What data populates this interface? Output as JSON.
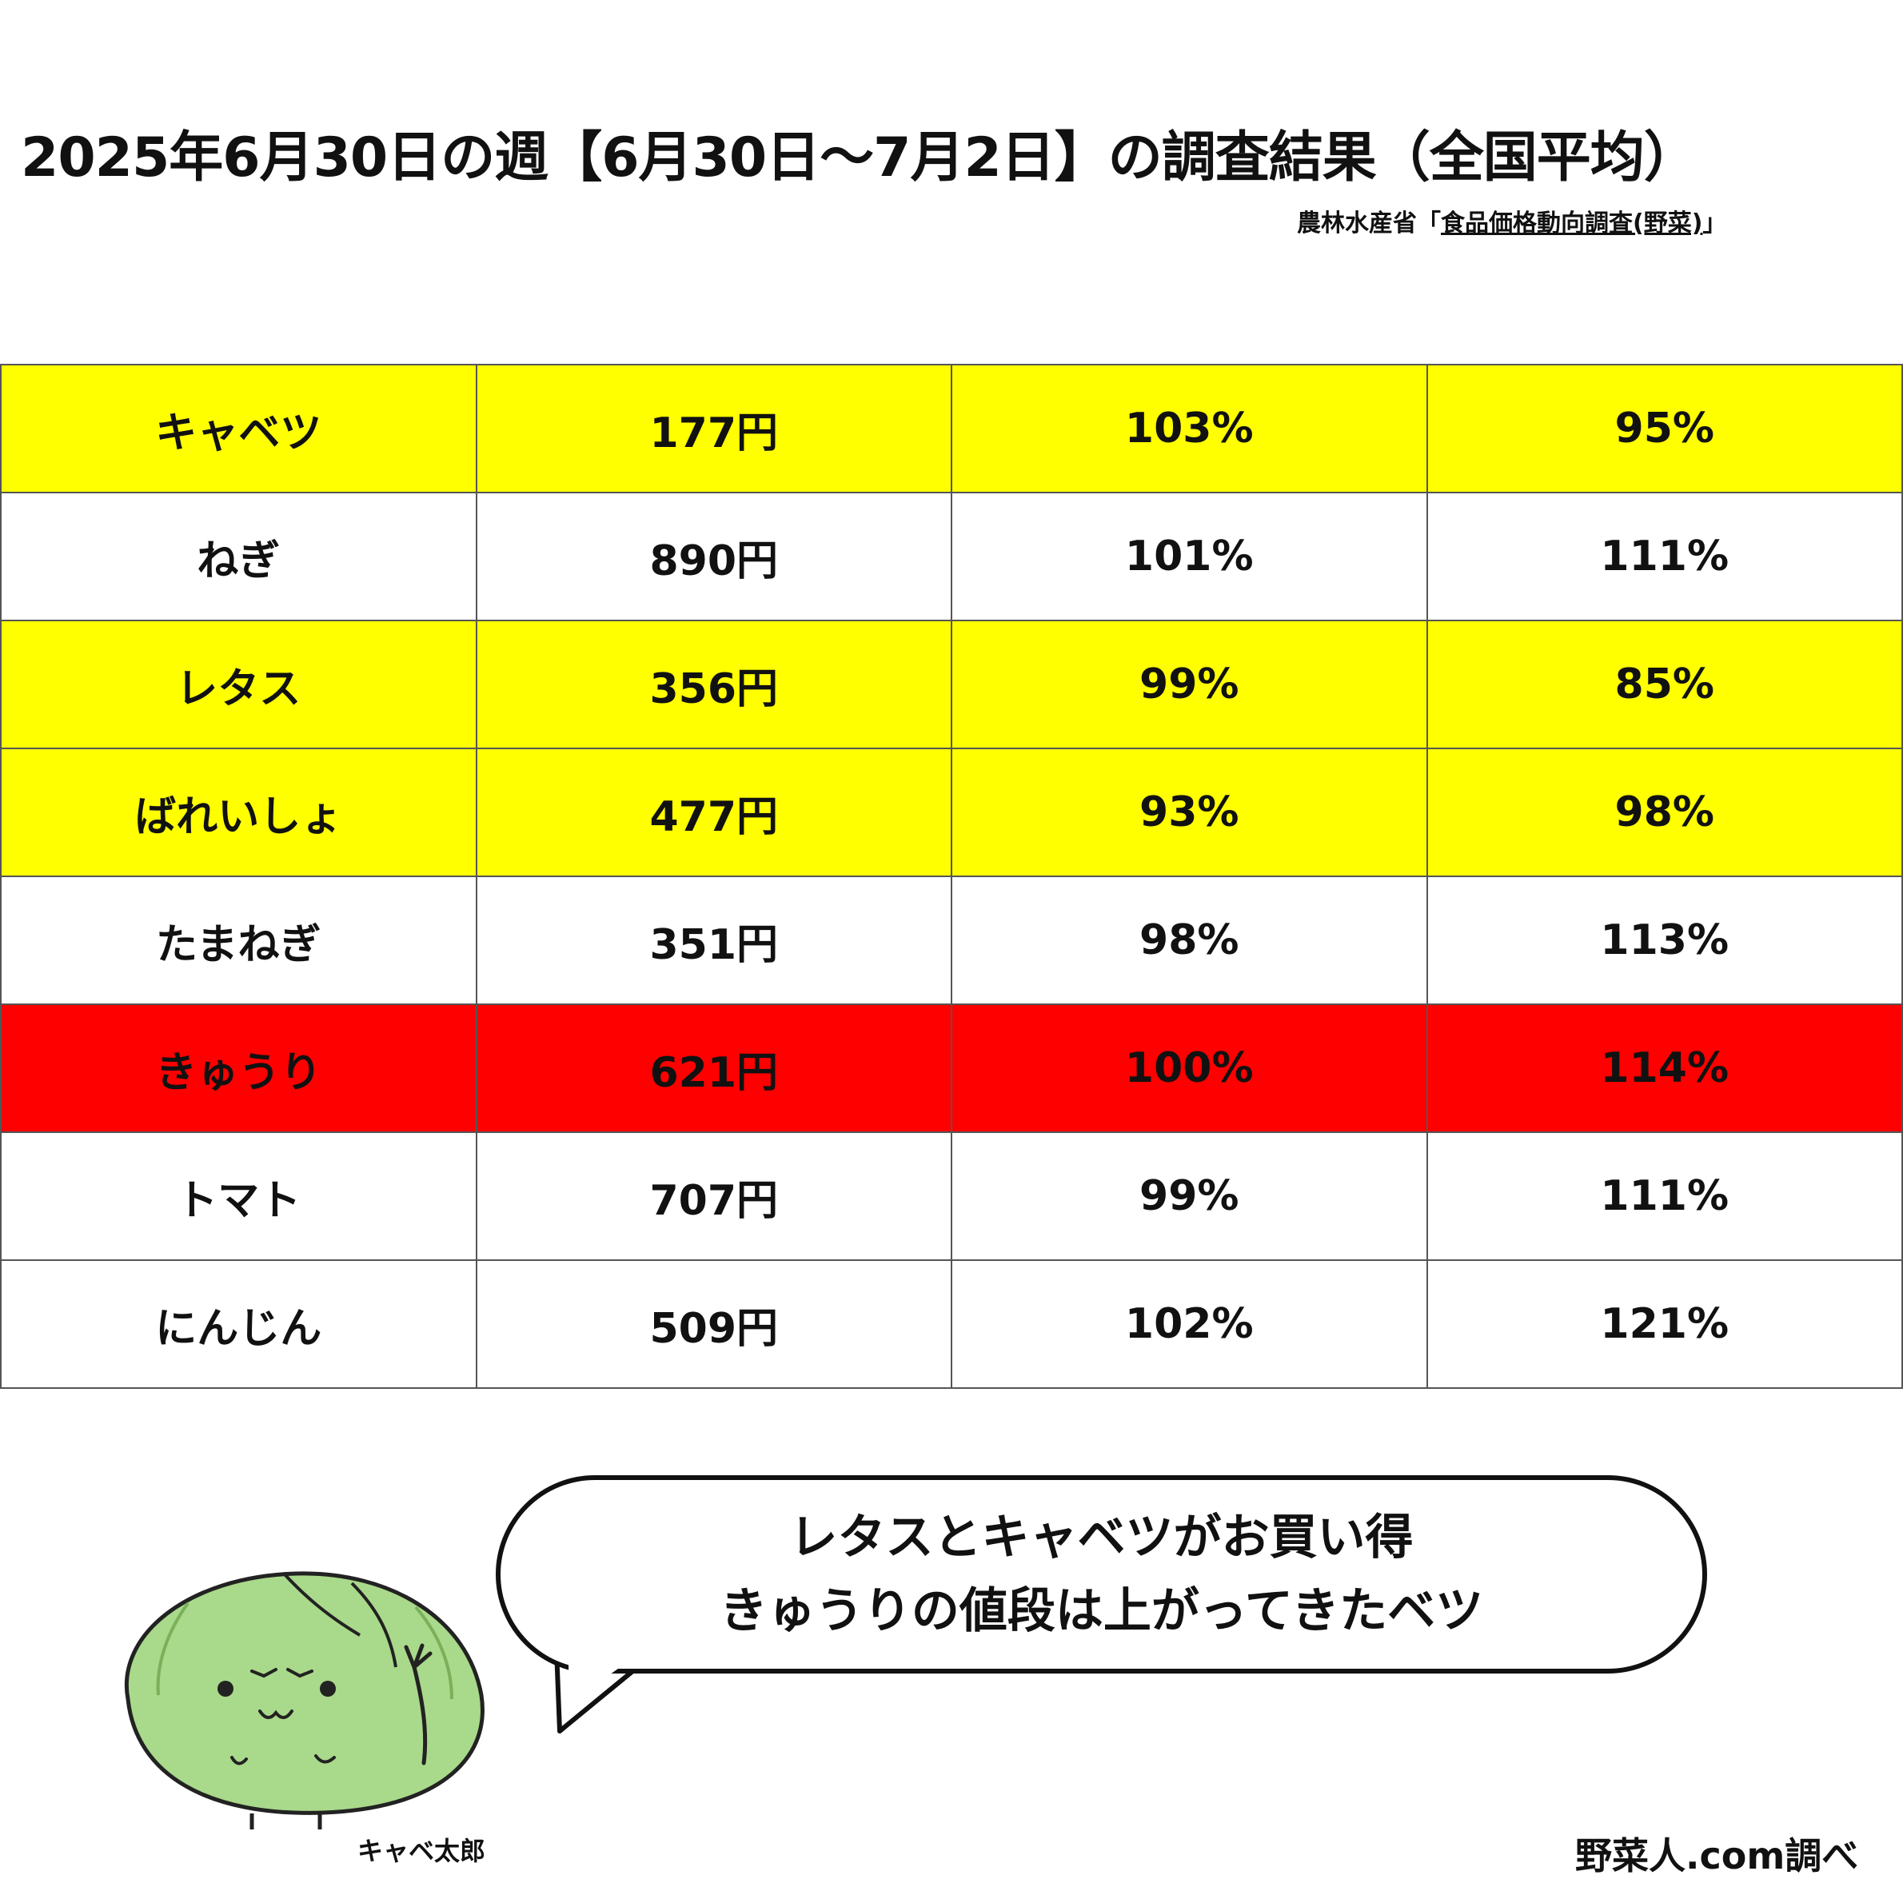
{
  "title": "2025年6月30日の週【6月30日〜7月2日】の調査結果（全国平均）",
  "source": {
    "prefix": "農林水産省「",
    "link_text": "食品価格動向調査(野菜)",
    "suffix": "」"
  },
  "colors": {
    "highlight_good": "#ffff00",
    "highlight_bad": "#ff0000",
    "normal": "#ffffff",
    "cabbage_green": "#a9d98a"
  },
  "rows": [
    {
      "name": "キャベツ",
      "price": "177円",
      "ratio_prev_week": "103%",
      "ratio_normal_year": "95%",
      "highlight": "yellow"
    },
    {
      "name": "ねぎ",
      "price": "890円",
      "ratio_prev_week": "101%",
      "ratio_normal_year": "111%",
      "highlight": "none"
    },
    {
      "name": "レタス",
      "price": "356円",
      "ratio_prev_week": "99%",
      "ratio_normal_year": "85%",
      "highlight": "yellow"
    },
    {
      "name": "ばれいしょ",
      "price": "477円",
      "ratio_prev_week": "93%",
      "ratio_normal_year": "98%",
      "highlight": "yellow"
    },
    {
      "name": "たまねぎ",
      "price": "351円",
      "ratio_prev_week": "98%",
      "ratio_normal_year": "113%",
      "highlight": "none"
    },
    {
      "name": "きゅうり",
      "price": "621円",
      "ratio_prev_week": "100%",
      "ratio_normal_year": "114%",
      "highlight": "red"
    },
    {
      "name": "トマト",
      "price": "707円",
      "ratio_prev_week": "99%",
      "ratio_normal_year": "111%",
      "highlight": "none"
    },
    {
      "name": "にんじん",
      "price": "509円",
      "ratio_prev_week": "102%",
      "ratio_normal_year": "121%",
      "highlight": "none"
    }
  ],
  "speech": {
    "line1": "レタスとキャベツがお買い得",
    "line2": "きゅうりの値段は上がってきたベツ"
  },
  "mascot": {
    "name": "キャベ太郎",
    "icon": "cabbage-mascot-icon"
  },
  "credit": "野菜人.com調べ"
}
